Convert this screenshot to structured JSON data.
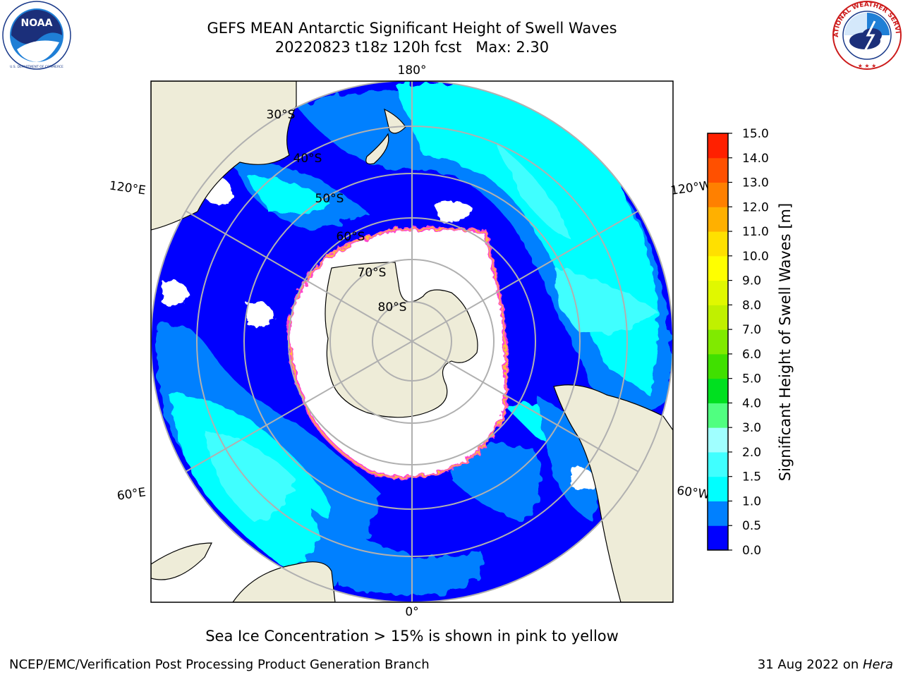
{
  "title": {
    "line1": "GEFS MEAN Antarctic Significant Height of Swell Waves",
    "line2": "20220823 t18z 120h fcst   Max: 2.30"
  },
  "map": {
    "projection": "south polar stereographic",
    "longitude_labels": [
      "180°",
      "120°E",
      "120°W",
      "60°E",
      "60°W",
      "0°"
    ],
    "latitude_labels": [
      "30°S",
      "40°S",
      "50°S",
      "60°S",
      "70°S",
      "80°S"
    ],
    "colors": {
      "land": "#eeecd8",
      "no_data": "#ffffff",
      "sea_ice_edge": "#ff44cc"
    }
  },
  "colorbar": {
    "label": "Significant Height of Swell Waves [m]",
    "ticks": [
      "0.0",
      "0.5",
      "1.0",
      "1.5",
      "2.0",
      "3.0",
      "4.0",
      "5.0",
      "6.0",
      "7.0",
      "8.0",
      "9.0",
      "10.0",
      "11.0",
      "12.0",
      "13.0",
      "14.0",
      "15.0"
    ],
    "colors": [
      "#0000ff",
      "#0080ff",
      "#00ffff",
      "#40ffff",
      "#a0ffff",
      "#50ff80",
      "#00e020",
      "#40e000",
      "#80ea00",
      "#c0f000",
      "#e0f800",
      "#ffff00",
      "#ffe000",
      "#ffb000",
      "#ff8000",
      "#ff5000",
      "#ff2000"
    ]
  },
  "note": "Sea Ice Concentration > 15% is shown in pink to yellow",
  "footer": {
    "left": "NCEP/EMC/Verification Post Processing Product Generation Branch",
    "right_prefix": "31 Aug 2022 on ",
    "right_machine": "Hera"
  },
  "logos": {
    "noaa": {
      "text": "NOAA",
      "ring_text": "NATIONAL OCEANIC AND ATMOSPHERIC ADMINISTRATION · U.S. DEPARTMENT OF COMMERCE"
    },
    "nws": {
      "ring_text": "NATIONAL WEATHER SERVICE"
    }
  }
}
